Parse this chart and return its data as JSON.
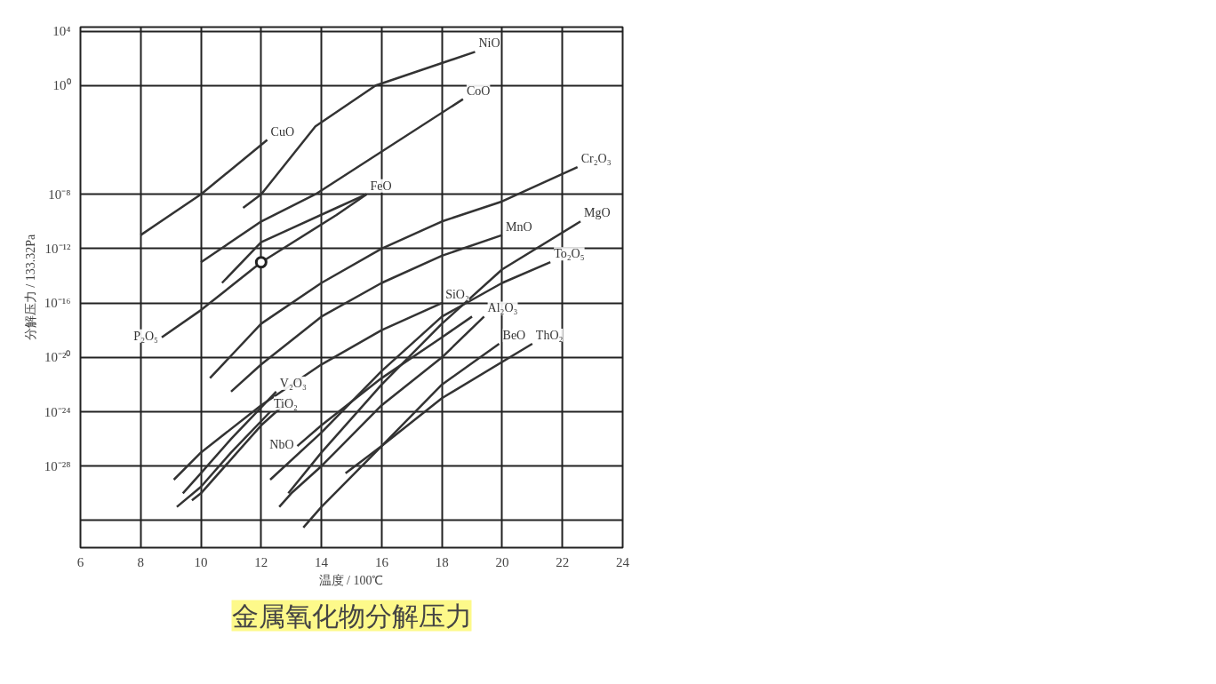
{
  "chart_data": {
    "type": "line",
    "title": "金属氧化物分解压力",
    "xlabel": "温度 / 100℃",
    "ylabel": "分解压力 / 133.32Pa",
    "log": "y",
    "grid": true,
    "xlim": [
      6,
      24
    ],
    "xticks": [
      6,
      8,
      10,
      12,
      14,
      16,
      18,
      20,
      22,
      24
    ],
    "ylim": [
      1e-34,
      20000.0
    ],
    "yticks": [
      {
        "value": 10000,
        "label": "10⁴"
      },
      {
        "value": 1,
        "label": "10⁰"
      },
      {
        "value": 1e-08,
        "label": "10⁻⁸"
      },
      {
        "value": 1e-12,
        "label": "10⁻¹²"
      },
      {
        "value": 1e-16,
        "label": "10⁻¹⁶"
      },
      {
        "value": 1e-20,
        "label": "10⁻²⁰"
      },
      {
        "value": 1e-24,
        "label": "10⁻²⁴"
      },
      {
        "value": 1e-28,
        "label": "10⁻²⁸"
      },
      {
        "value": 1e-32,
        "label": null
      }
    ],
    "series": [
      {
        "name": "CuO",
        "color": "#333333",
        "x": [
          8,
          10,
          12.2
        ],
        "values": [
          1e-11,
          1e-08,
          0.0001
        ]
      },
      {
        "name": "NiO",
        "color": "#333333",
        "x": [
          11.4,
          12,
          13.8,
          15.8,
          19.1
        ],
        "values": [
          1e-09,
          1e-08,
          0.001,
          1,
          300
        ]
      },
      {
        "name": "CoO",
        "color": "#333333",
        "x": [
          10,
          12,
          13.8,
          18.7
        ],
        "values": [
          1e-13,
          1e-10,
          1e-08,
          0.1
        ]
      },
      {
        "name": "FeO",
        "color": "#333333",
        "x": [
          10.7,
          12,
          14.5,
          15.5
        ],
        "values": [
          3e-15,
          3e-12,
          1e-09,
          1e-08
        ]
      },
      {
        "name": "P₂O₅",
        "color": "#333333",
        "x": [
          8.7,
          10,
          12,
          14.5,
          15.5
        ],
        "values": [
          3e-19,
          3e-17,
          1e-13,
          3e-10,
          1e-08
        ]
      },
      {
        "name": "Cr₂O₃",
        "color": "#333333",
        "x": [
          10.3,
          12,
          14,
          16,
          18,
          20,
          22.5
        ],
        "values": [
          3e-22,
          3e-18,
          3e-15,
          1e-12,
          1e-10,
          3e-09,
          1e-06
        ]
      },
      {
        "name": "MnO",
        "color": "#333333",
        "x": [
          11,
          12,
          14,
          16,
          18,
          20
        ],
        "values": [
          3e-23,
          3e-21,
          1e-17,
          3e-15,
          3e-13,
          1e-11
        ]
      },
      {
        "name": "SiO₂",
        "color": "#333333",
        "x": [
          9.1,
          10,
          12,
          14,
          16,
          18
        ],
        "values": [
          1e-29,
          1e-27,
          3e-24,
          3e-21,
          1e-18,
          1e-16
        ]
      },
      {
        "name": "V₂O₃",
        "color": "#333333",
        "x": [
          9.4,
          10,
          11,
          12.5
        ],
        "values": [
          1e-30,
          3e-29,
          1e-26,
          3e-23
        ]
      },
      {
        "name": "TiO₂",
        "color": "#333333",
        "x": [
          9.2,
          10,
          11,
          12.3
        ],
        "values": [
          1e-31,
          3e-30,
          1e-27,
          1e-24
        ]
      },
      {
        "color": "#333333",
        "x": [
          9.7,
          10,
          12,
          13
        ],
        "values": [
          3e-31,
          1e-30,
          1e-25,
          1e-23
        ]
      },
      {
        "name": "Al₂O₃",
        "color": "#333333",
        "x": [
          12.6,
          13,
          14,
          16,
          18,
          19.4
        ],
        "values": [
          1e-31,
          1e-30,
          1e-28,
          3e-24,
          1e-20,
          1e-17
        ]
      },
      {
        "name": "NbO",
        "color": "#333333",
        "x": [
          13.2,
          14,
          16,
          18,
          19
        ],
        "values": [
          3e-27,
          1e-25,
          3e-22,
          3e-19,
          1e-17
        ]
      },
      {
        "name": "To₂O₅",
        "color": "#333333",
        "x": [
          12.3,
          14,
          16,
          18,
          20,
          21.6
        ],
        "values": [
          1e-29,
          3e-26,
          1e-21,
          1e-17,
          3e-15,
          1e-13
        ]
      },
      {
        "name": "MgO",
        "color": "#333333",
        "x": [
          12.9,
          14,
          16,
          18,
          20,
          22.6
        ],
        "values": [
          1e-30,
          1e-27,
          1e-22,
          3e-18,
          3e-14,
          1e-10
        ]
      },
      {
        "name": "BeO",
        "color": "#333333",
        "x": [
          13.4,
          14,
          16,
          18,
          19.9
        ],
        "values": [
          3e-33,
          1e-31,
          3e-27,
          1e-22,
          1e-19
        ]
      },
      {
        "name": "ThO₂",
        "color": "#333333",
        "x": [
          14.8,
          16,
          18,
          21
        ],
        "values": [
          3e-29,
          3e-27,
          1e-23,
          1e-19
        ]
      },
      {
        "type": "scatter",
        "marker": "circle",
        "color": "#222222",
        "x": [
          12
        ],
        "values": [
          1e-13
        ]
      }
    ]
  }
}
